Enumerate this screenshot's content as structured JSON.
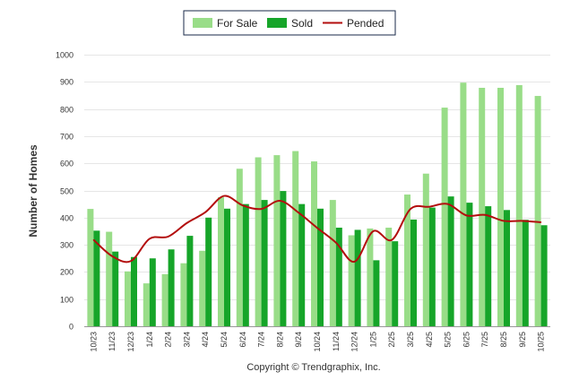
{
  "chart_data": {
    "type": "bar",
    "title": "",
    "ylabel": "Number of Homes",
    "xlabel": "",
    "ylim": [
      0,
      1000
    ],
    "yticks": [
      0,
      100,
      200,
      300,
      400,
      500,
      600,
      700,
      800,
      900,
      1000
    ],
    "grid": true,
    "legend_position": "top-center",
    "categories": [
      "10/23",
      "11/23",
      "12/23",
      "1/24",
      "2/24",
      "3/24",
      "4/24",
      "5/24",
      "6/24",
      "7/24",
      "8/24",
      "9/24",
      "10/24",
      "11/24",
      "12/24",
      "1/25",
      "2/25",
      "3/25",
      "4/25",
      "5/25",
      "6/25",
      "7/25",
      "8/25",
      "9/25",
      "10/25"
    ],
    "series": [
      {
        "name": "For Sale",
        "kind": "bar",
        "color": "#99dd88",
        "values": [
          432,
          348,
          202,
          158,
          192,
          232,
          278,
          475,
          580,
          622,
          630,
          645,
          607,
          465,
          335,
          360,
          363,
          485,
          562,
          805,
          897,
          878,
          878,
          888,
          848
        ]
      },
      {
        "name": "Sold",
        "kind": "bar",
        "color": "#16a529",
        "values": [
          352,
          275,
          255,
          250,
          283,
          333,
          400,
          433,
          450,
          465,
          498,
          450,
          433,
          363,
          355,
          243,
          313,
          393,
          437,
          478,
          455,
          442,
          428,
          392,
          372
        ]
      },
      {
        "name": "Pended",
        "kind": "line",
        "color": "#b30e0e",
        "values": [
          318,
          258,
          240,
          322,
          330,
          380,
          420,
          480,
          445,
          432,
          462,
          418,
          362,
          308,
          238,
          350,
          318,
          432,
          440,
          450,
          408,
          410,
          388,
          388,
          383
        ]
      }
    ]
  },
  "footer": {
    "copyright": "Copyright © Trendgraphix, Inc."
  }
}
